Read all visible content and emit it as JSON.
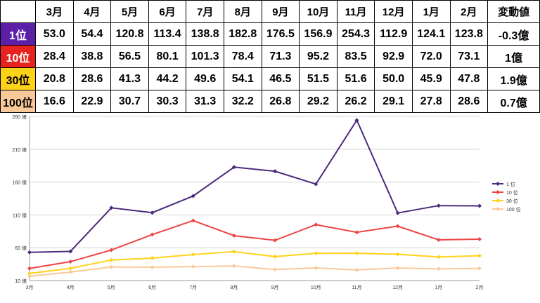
{
  "table": {
    "headers": [
      "3月",
      "4月",
      "5月",
      "6月",
      "7月",
      "8月",
      "9月",
      "10月",
      "11月",
      "12月",
      "1月",
      "2月",
      "変動値"
    ],
    "rows": [
      {
        "rank": "1位",
        "color": "#5b1fa8",
        "text_color": "#ffffff",
        "values": [
          "53.0",
          "54.4",
          "120.8",
          "113.4",
          "138.8",
          "182.8",
          "176.5",
          "156.9",
          "254.3",
          "112.9",
          "124.1",
          "123.8"
        ],
        "change": "-0.3億",
        "change_sign": "neg"
      },
      {
        "rank": "10位",
        "color": "#e8231f",
        "text_color": "#ffffff",
        "values": [
          "28.4",
          "38.8",
          "56.5",
          "80.1",
          "101.3",
          "78.4",
          "71.3",
          "95.2",
          "83.5",
          "92.9",
          "72.0",
          "73.1"
        ],
        "change": "1億",
        "change_sign": "pos"
      },
      {
        "rank": "30位",
        "color": "#ffd21a",
        "text_color": "#000000",
        "values": [
          "20.8",
          "28.6",
          "41.3",
          "44.2",
          "49.6",
          "54.1",
          "46.5",
          "51.5",
          "51.6",
          "50.0",
          "45.9",
          "47.8"
        ],
        "change": "1.9億",
        "change_sign": "pos"
      },
      {
        "rank": "100位",
        "color": "#f9c99a",
        "text_color": "#000000",
        "values": [
          "16.6",
          "22.9",
          "30.7",
          "30.3",
          "31.3",
          "32.2",
          "26.8",
          "29.2",
          "26.2",
          "29.1",
          "27.8",
          "28.6"
        ],
        "change": "0.7億",
        "change_sign": "pos"
      }
    ]
  },
  "chart_data": {
    "type": "line",
    "categories": [
      "3月",
      "4月",
      "5月",
      "6月",
      "7月",
      "8月",
      "9月",
      "10月",
      "11月",
      "12月",
      "1月",
      "2月"
    ],
    "series": [
      {
        "name": "1 位",
        "color": "#4b2a7b",
        "values": [
          53.0,
          54.4,
          120.8,
          113.4,
          138.8,
          182.8,
          176.5,
          156.9,
          254.3,
          112.9,
          124.1,
          123.8
        ]
      },
      {
        "name": "10 位",
        "color": "#ef4444",
        "values": [
          28.4,
          38.8,
          56.5,
          80.1,
          101.3,
          78.4,
          71.3,
          95.2,
          83.5,
          92.9,
          72.0,
          73.1
        ]
      },
      {
        "name": "30 位",
        "color": "#ffd21a",
        "values": [
          20.8,
          28.6,
          41.3,
          44.2,
          49.6,
          54.1,
          46.5,
          51.5,
          51.6,
          50.0,
          45.9,
          47.8
        ]
      },
      {
        "name": "100 位",
        "color": "#f9c99a",
        "values": [
          16.6,
          22.9,
          30.7,
          30.3,
          31.3,
          32.2,
          26.8,
          29.2,
          26.2,
          29.1,
          27.8,
          28.6
        ]
      }
    ],
    "yticks": [
      "10 億",
      "60 億",
      "110 億",
      "160 億",
      "210 億",
      "260 億"
    ],
    "ylim": [
      10,
      260
    ],
    "grid": true,
    "legend": "right"
  }
}
